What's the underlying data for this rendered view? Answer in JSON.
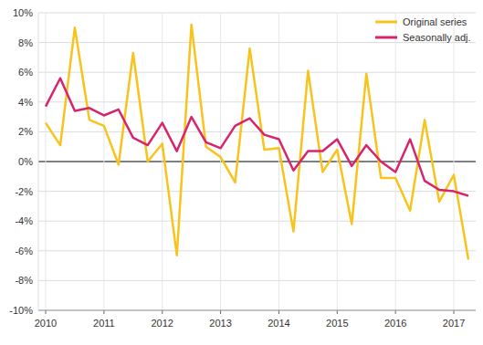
{
  "chart_data": {
    "type": "line",
    "categories": [
      "2010",
      null,
      null,
      null,
      "2011",
      null,
      null,
      null,
      "2012",
      null,
      null,
      null,
      "2013",
      null,
      null,
      null,
      "2014",
      null,
      null,
      null,
      "2015",
      null,
      null,
      null,
      "2016",
      null,
      null,
      null,
      "2017",
      null
    ],
    "series": [
      {
        "name": "Original series",
        "color": "#f7c31c",
        "values": [
          2.6,
          1.1,
          9.0,
          2.8,
          2.4,
          -0.2,
          7.3,
          0.0,
          1.2,
          -6.3,
          9.2,
          1.0,
          0.3,
          -1.4,
          7.6,
          0.8,
          0.9,
          -4.7,
          6.1,
          -0.7,
          0.8,
          -4.2,
          5.9,
          -1.1,
          -1.1,
          -3.3,
          2.8,
          -2.7,
          -0.9,
          -6.6
        ]
      },
      {
        "name": "Seasonally adj.",
        "color": "#d6246e",
        "values": [
          3.7,
          5.6,
          3.4,
          3.6,
          3.1,
          3.5,
          1.6,
          1.1,
          2.6,
          0.7,
          3.0,
          1.3,
          0.9,
          2.4,
          2.9,
          1.8,
          1.5,
          -0.6,
          0.7,
          0.7,
          1.5,
          -0.3,
          1.1,
          0.0,
          -0.7,
          1.5,
          -1.3,
          -1.9,
          -2.0,
          -2.3
        ]
      }
    ],
    "ylim": [
      -10,
      10
    ],
    "yticks": [
      {
        "value": -10,
        "label": "-10%"
      },
      {
        "value": -8,
        "label": "-8%"
      },
      {
        "value": -6,
        "label": "-6%"
      },
      {
        "value": -4,
        "label": "-4%"
      },
      {
        "value": -2,
        "label": "-2%"
      },
      {
        "value": 0,
        "label": "0%"
      },
      {
        "value": 2,
        "label": "2%"
      },
      {
        "value": 4,
        "label": "4%"
      },
      {
        "value": 6,
        "label": "6%"
      },
      {
        "value": 8,
        "label": "8%"
      },
      {
        "value": 10,
        "label": "10%"
      }
    ],
    "grid": true,
    "legend": "top-right"
  }
}
